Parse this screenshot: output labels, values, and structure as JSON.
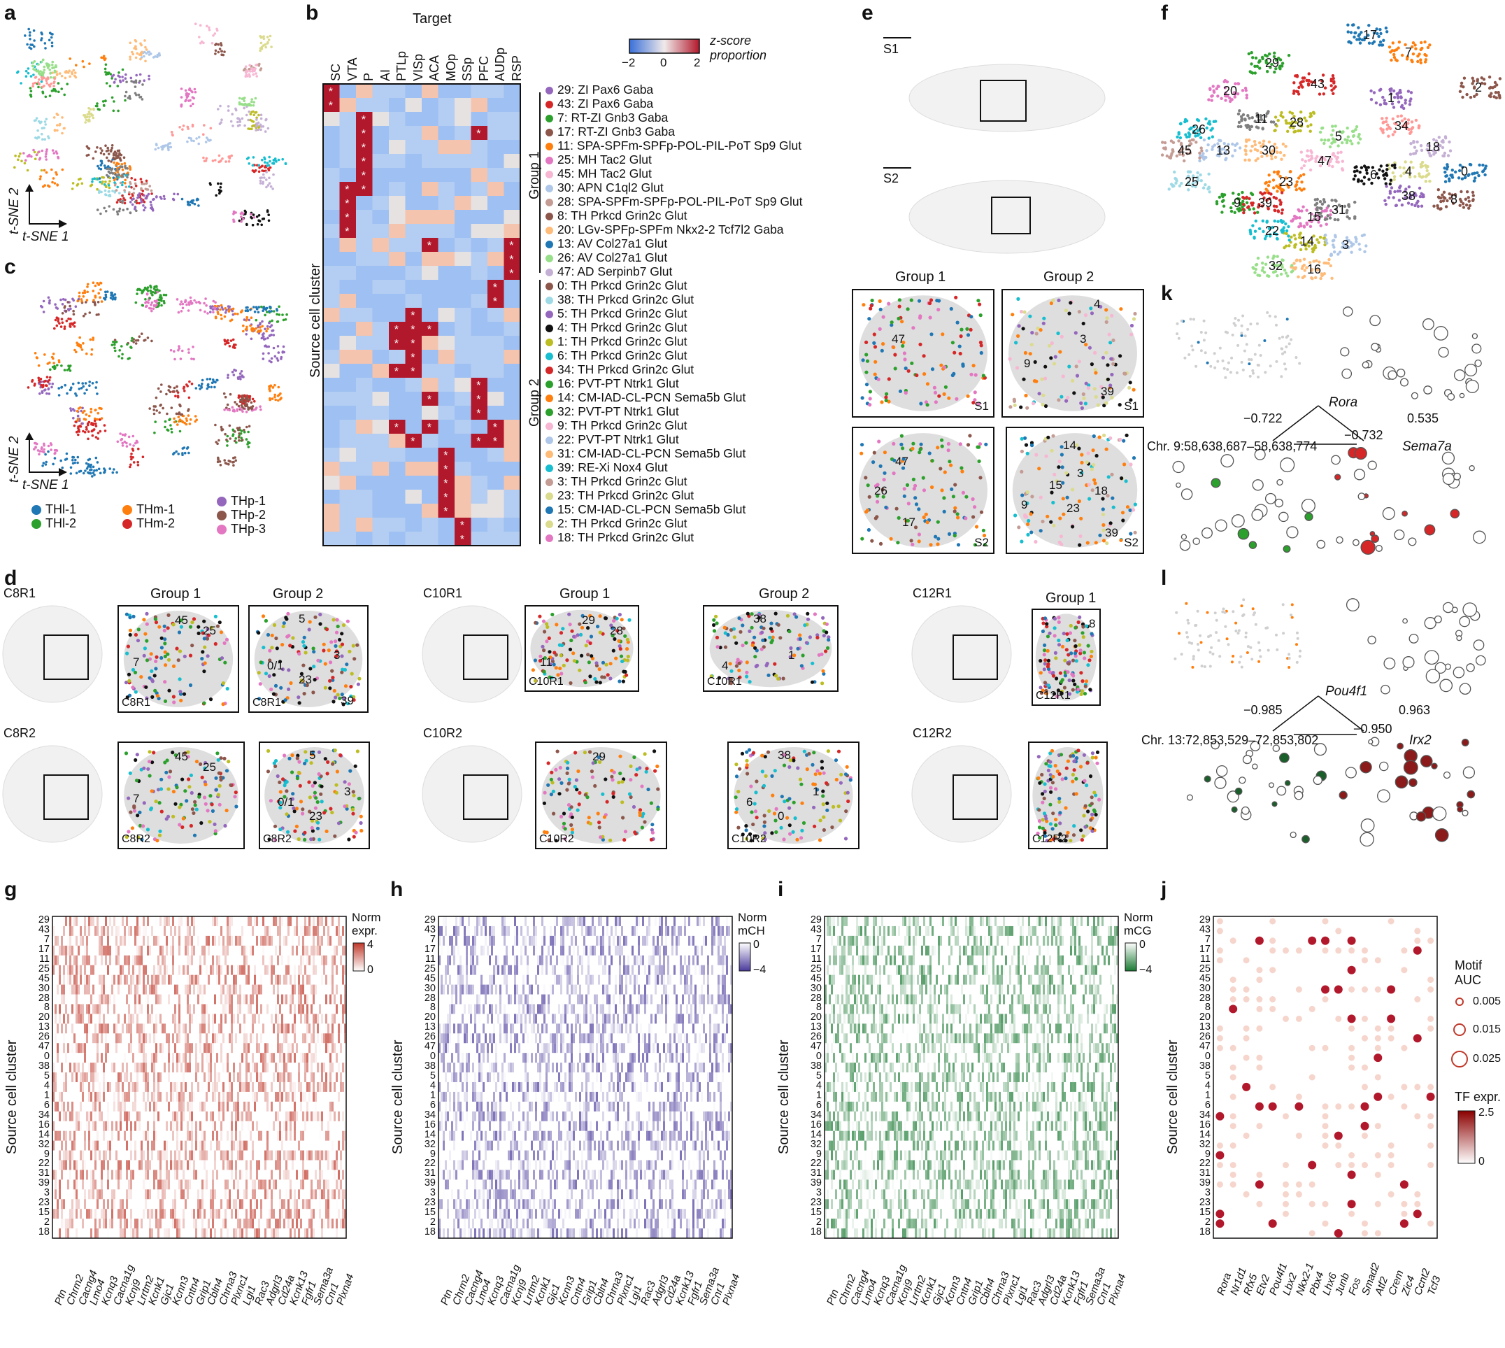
{
  "panels": {
    "a": "a",
    "b": "b",
    "c": "c",
    "d": "d",
    "e": "e",
    "f": "f",
    "g": "g",
    "h": "h",
    "i": "i",
    "j": "j",
    "k": "k",
    "l": "l"
  },
  "tsne": {
    "axis2": "t-SNE 2",
    "axis1": "t-SNE 1"
  },
  "panel_c_legend": [
    {
      "label": "THl-1",
      "color": "#1f77b4"
    },
    {
      "label": "THl-2",
      "color": "#2ca02c"
    },
    {
      "label": "THm-1",
      "color": "#ff7f0e"
    },
    {
      "label": "THm-2",
      "color": "#d62728"
    },
    {
      "label": "THp-1",
      "color": "#9467bd"
    },
    {
      "label": "THp-2",
      "color": "#8c564b"
    },
    {
      "label": "THp-3",
      "color": "#e377c2"
    }
  ],
  "panel_b": {
    "target_title": "Target",
    "ylabel": "Source cell cluster",
    "colorbar_title": "z-score proportion",
    "colorbar_ticks": [
      "−2",
      "0",
      "2"
    ],
    "targets": [
      "SC",
      "VTA",
      "P",
      "AI",
      "PTLp",
      "VISp",
      "ACA",
      "MOp",
      "SSp",
      "PFC",
      "AUDp",
      "RSP"
    ],
    "group1": "Group 1",
    "group2": "Group 2",
    "clusters": [
      {
        "label": "29: ZI Pax6 Gaba",
        "color": "#9467bd"
      },
      {
        "label": "43: ZI Pax6 Gaba",
        "color": "#d62728"
      },
      {
        "label": "7: RT-ZI Gnb3 Gaba",
        "color": "#2ca02c"
      },
      {
        "label": "17: RT-ZI Gnb3 Gaba",
        "color": "#8c564b"
      },
      {
        "label": "11: SPA-SPFm-SPFp-POL-PIL-PoT Sp9 Glut",
        "color": "#ff7f0e"
      },
      {
        "label": "25: MH Tac2 Glut",
        "color": "#e377c2"
      },
      {
        "label": "45: MH Tac2 Glut",
        "color": "#f7b6d2"
      },
      {
        "label": "30: APN C1ql2 Glut",
        "color": "#aec7e8"
      },
      {
        "label": "28: SPA-SPFm-SPFp-POL-PIL-PoT Sp9 Glut",
        "color": "#c49c94"
      },
      {
        "label": "8: TH Prkcd Grin2c Glut",
        "color": "#8c564b"
      },
      {
        "label": "20: LGv-SPFp-SPFm Nkx2-2 Tcf7l2 Gaba",
        "color": "#ffbb78"
      },
      {
        "label": "13: AV Col27a1 Glut",
        "color": "#1f77b4"
      },
      {
        "label": "26: AV Col27a1 Glut",
        "color": "#98df8a"
      },
      {
        "label": "47: AD Serpinb7 Glut",
        "color": "#c5b0d5"
      },
      {
        "label": "0: TH Prkcd Grin2c Glut",
        "color": "#8c564b"
      },
      {
        "label": "38: TH Prkcd Grin2c Glut",
        "color": "#9edae5"
      },
      {
        "label": "5: TH Prkcd Grin2c Glut",
        "color": "#9467bd"
      },
      {
        "label": "4: TH Prkcd Grin2c Glut",
        "color": "#111111"
      },
      {
        "label": "1: TH Prkcd Grin2c Glut",
        "color": "#bcbd22"
      },
      {
        "label": "6: TH Prkcd Grin2c Glut",
        "color": "#17becf"
      },
      {
        "label": "34: TH Prkcd Grin2c Glut",
        "color": "#d62728"
      },
      {
        "label": "16: PVT-PT Ntrk1 Glut",
        "color": "#2ca02c"
      },
      {
        "label": "14: CM-IAD-CL-PCN Sema5b Glut",
        "color": "#ff7f0e"
      },
      {
        "label": "32: PVT-PT Ntrk1 Glut",
        "color": "#2ca02c"
      },
      {
        "label": "9: TH Prkcd Grin2c Glut",
        "color": "#f7b6d2"
      },
      {
        "label": "22: PVT-PT Ntrk1 Glut",
        "color": "#aec7e8"
      },
      {
        "label": "31: CM-IAD-CL-PCN Sema5b Glut",
        "color": "#ffbb78"
      },
      {
        "label": "39: RE-Xi Nox4 Glut",
        "color": "#17becf"
      },
      {
        "label": "3: TH Prkcd Grin2c Glut",
        "color": "#c49c94"
      },
      {
        "label": "23: TH Prkcd Grin2c Glut",
        "color": "#dbdb8d"
      },
      {
        "label": "15: CM-IAD-CL-PCN Sema5b Glut",
        "color": "#1f77b4"
      },
      {
        "label": "2: TH Prkcd Grin2c Glut",
        "color": "#dbdb8d"
      },
      {
        "label": "18: TH Prkcd Grin2c Glut",
        "color": "#e377c2"
      }
    ]
  },
  "panel_e": {
    "s1": "S1",
    "s2": "S2",
    "group1": "Group 1",
    "group2": "Group 2",
    "labels_g1_s1": [
      "47"
    ],
    "labels_g2_s1": [
      "4",
      "3",
      "9",
      "39"
    ],
    "labels_g1_s2": [
      "47",
      "26",
      "17"
    ],
    "labels_g2_s2": [
      "14",
      "3",
      "15",
      "18",
      "9",
      "23",
      "39"
    ]
  },
  "panel_f_labels": [
    "17",
    "7",
    "29",
    "43",
    "1",
    "2",
    "20",
    "11",
    "28",
    "26",
    "13",
    "30",
    "5",
    "34",
    "18",
    "45",
    "47",
    "4",
    "25",
    "6",
    "0",
    "23",
    "9",
    "39",
    "38",
    "8",
    "15",
    "31",
    "14",
    "22",
    "3",
    "16",
    "32"
  ],
  "panel_d": {
    "c8r1": "C8R1",
    "c8r2": "C8R2",
    "c10r1": "C10R1",
    "c10r2": "C10R2",
    "c12r1": "C12R1",
    "c12r2": "C12R2",
    "group1": "Group 1",
    "group2": "Group 2",
    "c8r1_g1": [
      "45",
      "25",
      "7"
    ],
    "c8r1_g2": [
      "5",
      "3",
      "0/1",
      "23",
      "39"
    ],
    "c8r2_g1": [
      "45",
      "25",
      "7"
    ],
    "c8r2_g2": [
      "5",
      "3",
      "0/1",
      "23"
    ],
    "c10r1_g1": [
      "29",
      "28",
      "11"
    ],
    "c10r1_g2": [
      "38",
      "1",
      "4"
    ],
    "c10r2_g1": [
      "29"
    ],
    "c10r2_g2": [
      "38",
      "1",
      "6",
      "0"
    ],
    "c12r1_g1": [
      "8"
    ]
  },
  "panel_k": {
    "gene1": "Rora",
    "gene2": "Sema7a",
    "region": "Chr. 9:58,638,687–58,638,774",
    "r1": "−0.722",
    "r2": "0.535",
    "r3": "−0.732"
  },
  "panel_l": {
    "gene1": "Pou4f1",
    "gene2": "Irx2",
    "region": "Chr. 13:72,853,529–72,853,802",
    "r1": "−0.985",
    "r2": "0.963",
    "r3": "−0.950"
  },
  "heatmaps": {
    "ylabel": "Source cell cluster",
    "rows": [
      "29",
      "43",
      "7",
      "17",
      "11",
      "25",
      "45",
      "30",
      "28",
      "8",
      "20",
      "13",
      "26",
      "47",
      "0",
      "38",
      "5",
      "4",
      "1",
      "6",
      "34",
      "16",
      "14",
      "32",
      "9",
      "22",
      "31",
      "39",
      "3",
      "23",
      "15",
      "2",
      "18"
    ],
    "genes": [
      "Ptn",
      "Chrm2",
      "Cacng4",
      "Lmo4",
      "Kcnq3",
      "Cacna1g",
      "Kcnj9",
      "Lrrtm2",
      "Kcnk1",
      "Gjc1",
      "Kcnn3",
      "Cntn4",
      "Grip1",
      "Cbln4",
      "Chrna3",
      "Plxnc1",
      "Lgi1",
      "Rac3",
      "Adgrl3",
      "Cd24a",
      "Kcnk13",
      "Fgfr1",
      "Sema3a",
      "Cnr1",
      "Plxna4"
    ],
    "g": {
      "title": "Norm expr.",
      "ticks": [
        "4",
        "0"
      ],
      "color": "#c0392b"
    },
    "h": {
      "title": "Norm mCH",
      "ticks": [
        "0",
        "−4"
      ],
      "color": "#4b3a9c"
    },
    "i": {
      "title": "Norm mCG",
      "ticks": [
        "0",
        "−4"
      ],
      "color": "#1a7a32"
    }
  },
  "panel_j": {
    "tfs": [
      "Rora",
      "Nr1d1",
      "Rfx5",
      "Etv2",
      "Pou4f1",
      "Lbx2",
      "Nkx2-1",
      "Pbx4",
      "Lhx6",
      "Junb",
      "Fos",
      "Smad2",
      "Atf2",
      "Crem",
      "Zic4",
      "Ccnt2",
      "Tcf3"
    ],
    "motif_title": "Motif AUC",
    "motif_sizes": [
      "0.005",
      "0.015",
      "0.025"
    ],
    "expr_title": "TF expr.",
    "expr_ticks": [
      "2.5",
      "0"
    ]
  }
}
